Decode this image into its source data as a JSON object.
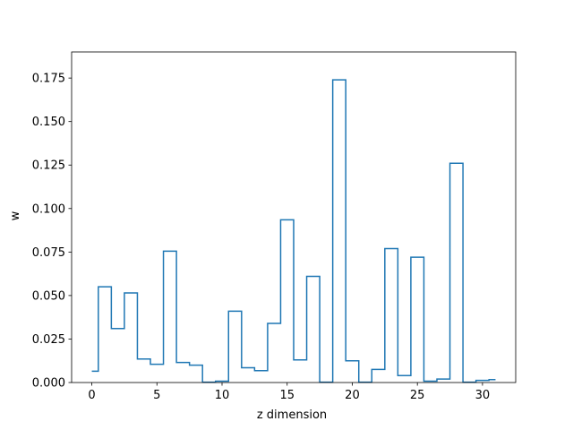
{
  "chart_data": {
    "type": "step",
    "title": "",
    "xlabel": "z dimension",
    "ylabel": "w",
    "xlim": [
      -1.55,
      32.55
    ],
    "ylim": [
      0,
      0.19
    ],
    "xticks": [
      0,
      5,
      10,
      15,
      20,
      25,
      30
    ],
    "xtick_labels": [
      "0",
      "5",
      "10",
      "15",
      "20",
      "25",
      "30"
    ],
    "yticks": [
      0,
      0.025,
      0.05,
      0.075,
      0.1,
      0.125,
      0.15,
      0.175
    ],
    "ytick_labels": [
      "0.000",
      "0.025",
      "0.050",
      "0.075",
      "0.100",
      "0.125",
      "0.150",
      "0.175"
    ],
    "grid": false,
    "legend": "none",
    "line_color": "#1f77b4",
    "series": [
      {
        "x": [
          0,
          1,
          2,
          3,
          4,
          5,
          6,
          7,
          8,
          9,
          10,
          11,
          12,
          13,
          14,
          15,
          16,
          17,
          18,
          19,
          20,
          21,
          22,
          23,
          24,
          25,
          26,
          27,
          28,
          29,
          30,
          31
        ],
        "values": [
          0.0065,
          0.055,
          0.031,
          0.0515,
          0.0135,
          0.0105,
          0.0755,
          0.0115,
          0.01,
          0.0002,
          0.0008,
          0.041,
          0.0085,
          0.0068,
          0.034,
          0.0935,
          0.013,
          0.061,
          0.0002,
          0.174,
          0.0125,
          0.0002,
          0.0075,
          0.077,
          0.004,
          0.072,
          0.0008,
          0.002,
          0.126,
          0.0002,
          0.0012,
          0.0017
        ]
      }
    ]
  }
}
